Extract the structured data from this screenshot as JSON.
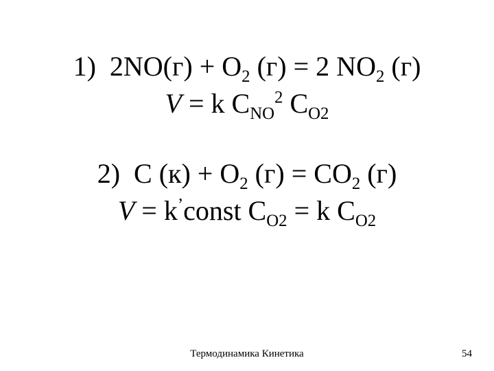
{
  "slide": {
    "background_color": "#ffffff",
    "text_color": "#000000",
    "font_family": "Times New Roman",
    "main_fontsize_pt": 30,
    "footer_fontsize_pt": 11
  },
  "eq1": {
    "label": "1)",
    "reaction_pre": "2NO(г) + O",
    "r_sub1": "2",
    "reaction_mid1": "(г) = 2 NO",
    "r_sub2": "2",
    "reaction_post": " (г)",
    "rate_V": "V",
    "rate_eq1": " = k C",
    "rate_sub1": "NO",
    "rate_sup1": "2",
    "rate_eq2": " C",
    "rate_sub2": "O2"
  },
  "eq2": {
    "label": "2)",
    "reaction_pre": "C (к) + O",
    "r_sub1": "2",
    "reaction_mid1": "(г) = CO",
    "r_sub2": "2",
    "reaction_post": "(г)",
    "rate_V": "V",
    "rate_eq1": " = k",
    "prime": "’",
    "rate_eq2": "const C",
    "rate_sub1": "O2",
    "rate_eq3": " = k C",
    "rate_sub2": "O2"
  },
  "footer": {
    "center": "Термодинамика Кинетика",
    "page": "54"
  }
}
